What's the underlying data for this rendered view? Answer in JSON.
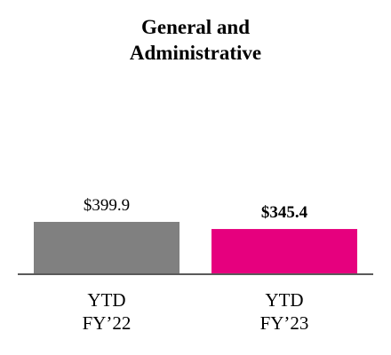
{
  "chart_data": {
    "type": "bar",
    "title_lines": [
      "General and",
      "Administrative"
    ],
    "categories": [
      [
        "YTD",
        "FY’22"
      ],
      [
        "YTD",
        "FY’23"
      ]
    ],
    "values": [
      399.9,
      345.4
    ],
    "value_labels": [
      "$399.9",
      "$345.4"
    ],
    "bold_labels": [
      false,
      true
    ],
    "colors": [
      "#808080",
      "#e6007e"
    ],
    "axis_color": "#5a5a5a",
    "grid": false,
    "legend": "none"
  }
}
